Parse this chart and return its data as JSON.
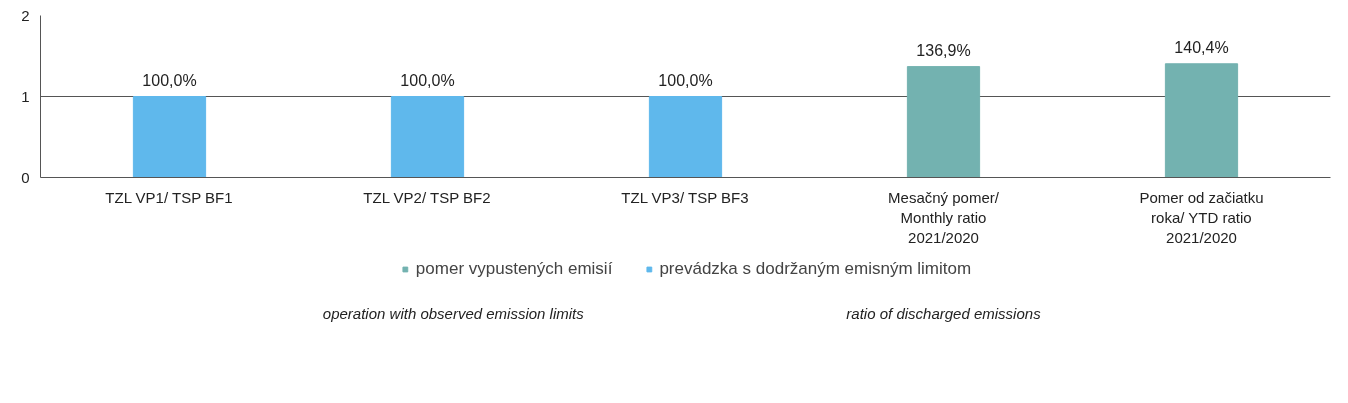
{
  "chart_data": {
    "type": "bar",
    "categories": [
      "TZL VP1/ TSP BF1",
      "TZL VP2/ TSP BF2",
      "TZL VP3/ TSP BF3",
      "Mesačný pomer/\nMonthly ratio\n2021/2020",
      "Pomer od začiatku\nroka/ YTD ratio\n2021/2020"
    ],
    "series": [
      {
        "name": "pomer vypustených emisií",
        "color": "#73b2b0",
        "values": [
          null,
          null,
          null,
          1.369,
          1.404
        ],
        "value_labels": [
          null,
          null,
          null,
          "136,9%",
          "140,4%"
        ]
      },
      {
        "name": "prevádzka s dodržaným emisným limitom",
        "color": "#5fb8ec",
        "values": [
          1.0,
          1.0,
          1.0,
          null,
          null
        ],
        "value_labels": [
          "100,0%",
          "100,0%",
          "100,0%",
          null,
          null
        ]
      }
    ],
    "ylim": [
      0,
      2
    ],
    "yticks": [
      0,
      1,
      2
    ],
    "grid": "y",
    "legend": "bottom",
    "annotations": [
      "operation with observed emission limits",
      "ratio of discharged emissions"
    ]
  }
}
